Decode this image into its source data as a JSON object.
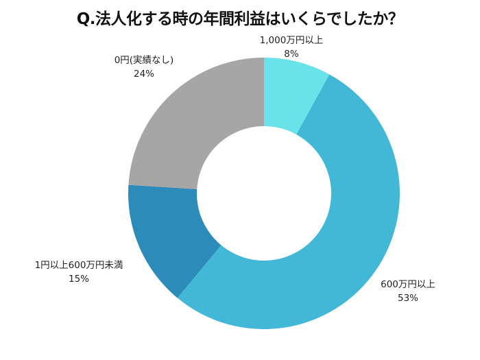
{
  "chart_data": {
    "type": "pie",
    "subtype": "donut",
    "title": "Q.法人化する時の年間利益はいくらでしたか？",
    "categories": [
      "1,000万円以上",
      "600万円以上",
      "1円以上600万円未満",
      "0円(実績なし)"
    ],
    "values": [
      8,
      53,
      15,
      24
    ],
    "value_labels": [
      "8%",
      "53%",
      "15%",
      "24%"
    ],
    "colors": [
      "#6ae3e8",
      "#42b7d6",
      "#2d8bb9",
      "#a6a6a6"
    ],
    "start_angle": "12 o'clock",
    "direction": "clockwise",
    "legend": "none (labels placed outside slices)"
  },
  "labels": [
    {
      "name": "1,000万円以上",
      "pct": "8%"
    },
    {
      "name": "600万円以上",
      "pct": "53%"
    },
    {
      "name": "1円以上600万円未満",
      "pct": "15%"
    },
    {
      "name": "0円(実績なし)",
      "pct": "24%"
    }
  ]
}
